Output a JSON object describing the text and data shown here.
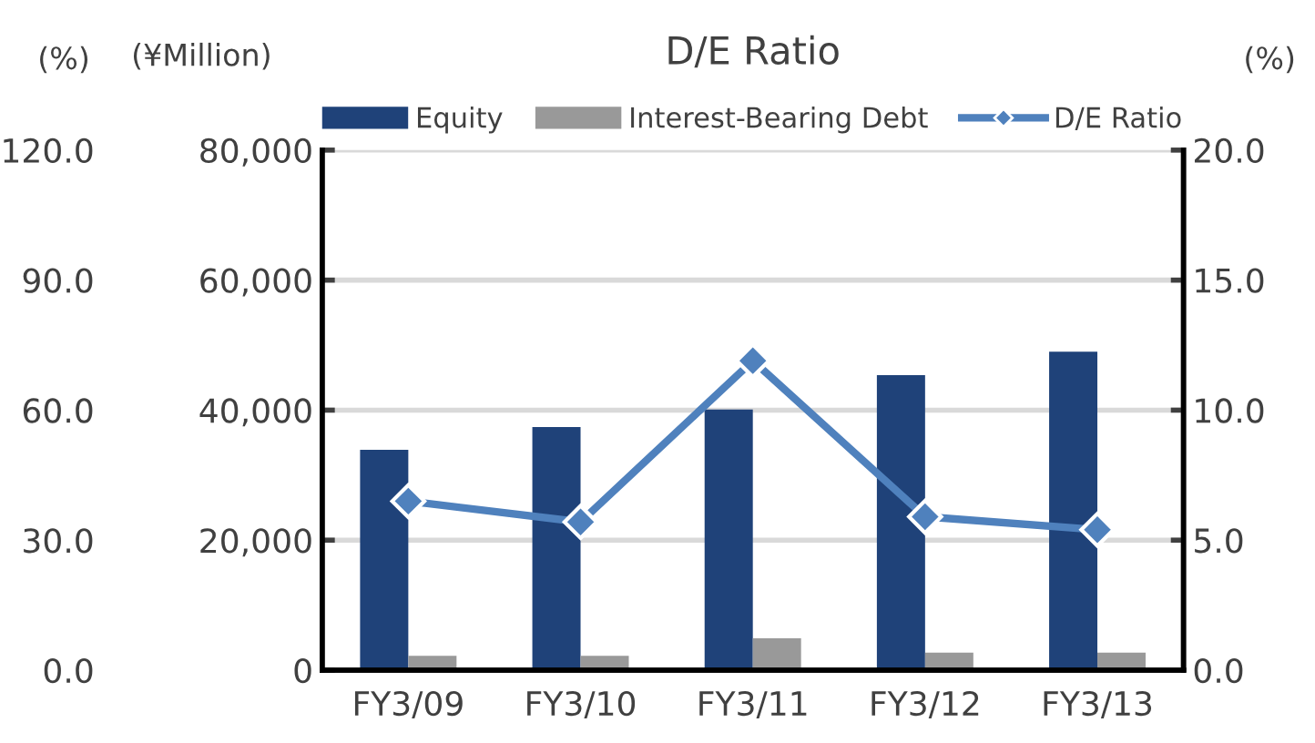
{
  "chart_data": {
    "type": "bar",
    "title": "D/E Ratio",
    "categories": [
      "FY3/09",
      "FY3/10",
      "FY3/11",
      "FY3/12",
      "FY3/13"
    ],
    "series": [
      {
        "name": "Equity",
        "color": "#1f4279",
        "values": [
          33900,
          37400,
          40100,
          45400,
          49000
        ]
      },
      {
        "name": "Interest-Bearing Debt",
        "color": "#999999",
        "values": [
          2200,
          2200,
          4900,
          2700,
          2700
        ]
      },
      {
        "name": "D/E Ratio",
        "type": "line",
        "axis": "y2",
        "color": "#4f81bd",
        "marker": "diamond",
        "values": [
          6.5,
          5.7,
          11.9,
          5.9,
          5.4
        ]
      }
    ],
    "ylabel": "(¥Million)",
    "y2label": "(%)",
    "y3label": "(%)",
    "ylim": [
      0,
      80000
    ],
    "yticks": [
      {
        "value": 0,
        "label": "0"
      },
      {
        "value": 20000,
        "label": "20,000"
      },
      {
        "value": 40000,
        "label": "40,000"
      },
      {
        "value": 60000,
        "label": "60,000"
      },
      {
        "value": 80000,
        "label": "80,000"
      }
    ],
    "y2lim": [
      0,
      20
    ],
    "y2ticks": [
      {
        "value": 0,
        "label": "0.0"
      },
      {
        "value": 5,
        "label": "5.0"
      },
      {
        "value": 10,
        "label": "10.0"
      },
      {
        "value": 15,
        "label": "15.0"
      },
      {
        "value": 20,
        "label": "20.0"
      }
    ],
    "y3lim": [
      0,
      120
    ],
    "y3ticks": [
      {
        "value": 0,
        "label": "0.0"
      },
      {
        "value": 30,
        "label": "30.0"
      },
      {
        "value": 60,
        "label": "60.0"
      },
      {
        "value": 90,
        "label": "90.0"
      },
      {
        "value": 120,
        "label": "120.0"
      }
    ],
    "grid": "y",
    "legend": "top"
  }
}
